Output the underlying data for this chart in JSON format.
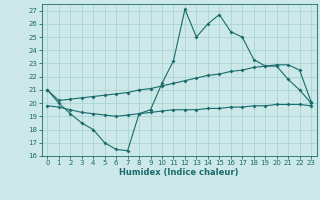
{
  "xlabel": "Humidex (Indice chaleur)",
  "bg_color": "#cce8e8",
  "line_color": "#1a6b6b",
  "grid_color": "#aad4d4",
  "ylim": [
    16,
    27.5
  ],
  "xlim": [
    -0.5,
    23.5
  ],
  "yticks": [
    16,
    17,
    18,
    19,
    20,
    21,
    22,
    23,
    24,
    25,
    26,
    27
  ],
  "xticks": [
    0,
    1,
    2,
    3,
    4,
    5,
    6,
    7,
    8,
    9,
    10,
    11,
    12,
    13,
    14,
    15,
    16,
    17,
    18,
    19,
    20,
    21,
    22,
    23
  ],
  "line1_x": [
    0,
    1,
    2,
    3,
    4,
    5,
    6,
    7,
    8,
    9,
    10,
    11,
    12,
    13,
    14,
    15,
    16,
    17,
    18,
    19,
    20,
    21,
    22,
    23
  ],
  "line1_y": [
    21.0,
    20.0,
    19.2,
    18.5,
    18.0,
    17.0,
    16.5,
    16.4,
    19.2,
    19.5,
    21.5,
    23.2,
    27.1,
    25.0,
    26.0,
    26.7,
    25.4,
    25.0,
    23.3,
    22.8,
    22.8,
    21.8,
    21.0,
    20.0
  ],
  "line2_x": [
    0,
    1,
    2,
    3,
    4,
    5,
    6,
    7,
    8,
    9,
    10,
    11,
    12,
    13,
    14,
    15,
    16,
    17,
    18,
    19,
    20,
    21,
    22,
    23
  ],
  "line2_y": [
    21.0,
    20.2,
    20.3,
    20.4,
    20.5,
    20.6,
    20.7,
    20.8,
    21.0,
    21.1,
    21.3,
    21.5,
    21.7,
    21.9,
    22.1,
    22.2,
    22.4,
    22.5,
    22.7,
    22.8,
    22.9,
    22.9,
    22.5,
    20.1
  ],
  "line3_x": [
    0,
    1,
    2,
    3,
    4,
    5,
    6,
    7,
    8,
    9,
    10,
    11,
    12,
    13,
    14,
    15,
    16,
    17,
    18,
    19,
    20,
    21,
    22,
    23
  ],
  "line3_y": [
    19.8,
    19.7,
    19.5,
    19.3,
    19.2,
    19.1,
    19.0,
    19.1,
    19.2,
    19.3,
    19.4,
    19.5,
    19.5,
    19.5,
    19.6,
    19.6,
    19.7,
    19.7,
    19.8,
    19.8,
    19.9,
    19.9,
    19.9,
    19.8
  ]
}
